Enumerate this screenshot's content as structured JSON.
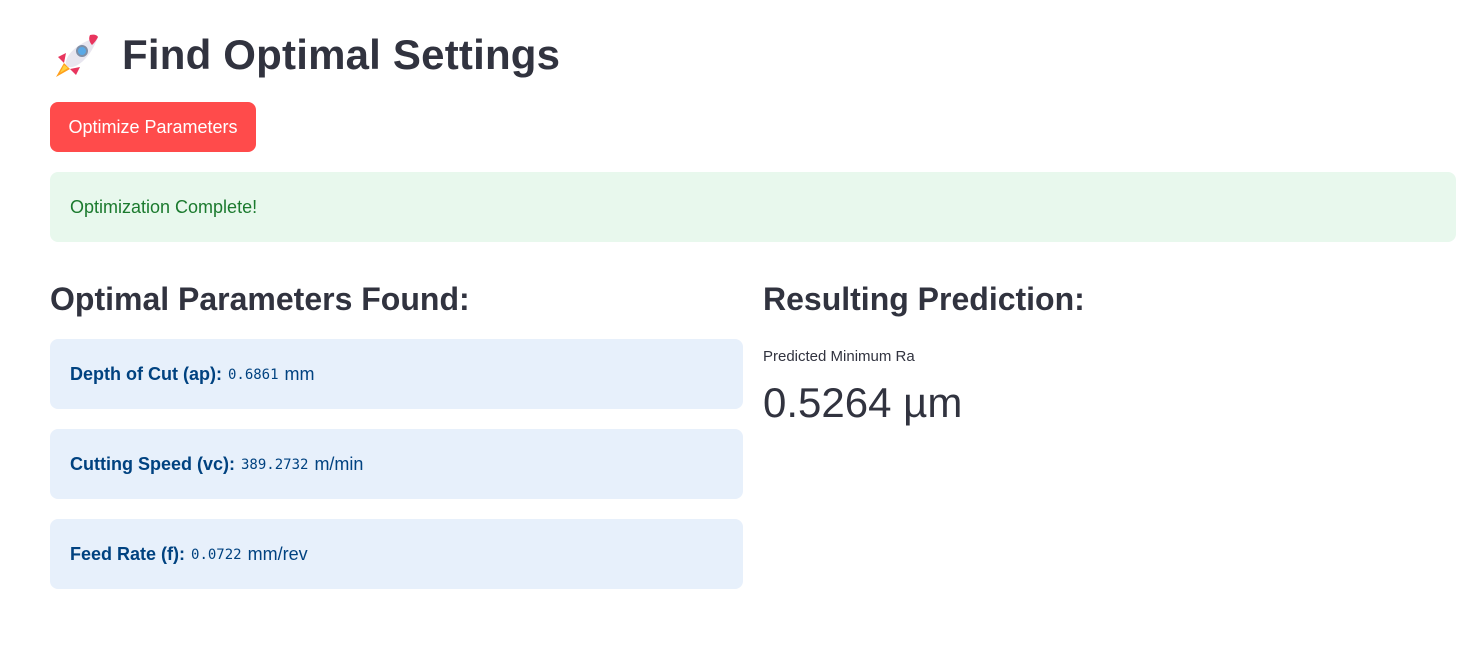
{
  "header": {
    "icon": "rocket-icon",
    "title": "Find Optimal Settings"
  },
  "actions": {
    "optimize_label": "Optimize Parameters"
  },
  "status": {
    "message": "Optimization Complete!"
  },
  "parameters": {
    "heading": "Optimal Parameters Found:",
    "items": [
      {
        "label": "Depth of Cut (ap):",
        "value": "0.6861",
        "unit": "mm"
      },
      {
        "label": "Cutting Speed (vc):",
        "value": "389.2732",
        "unit": "m/min"
      },
      {
        "label": "Feed Rate (f):",
        "value": "0.0722",
        "unit": "mm/rev"
      }
    ]
  },
  "prediction": {
    "heading": "Resulting Prediction:",
    "metric_label": "Predicted Minimum Ra",
    "metric_value": "0.5264 µm"
  },
  "colors": {
    "primary": "#ff4b4b",
    "success_bg": "#e8f8ed",
    "success_text": "#1b7a2e",
    "info_bg": "#e7f0fb",
    "info_text": "#004280",
    "text": "#31333f"
  }
}
